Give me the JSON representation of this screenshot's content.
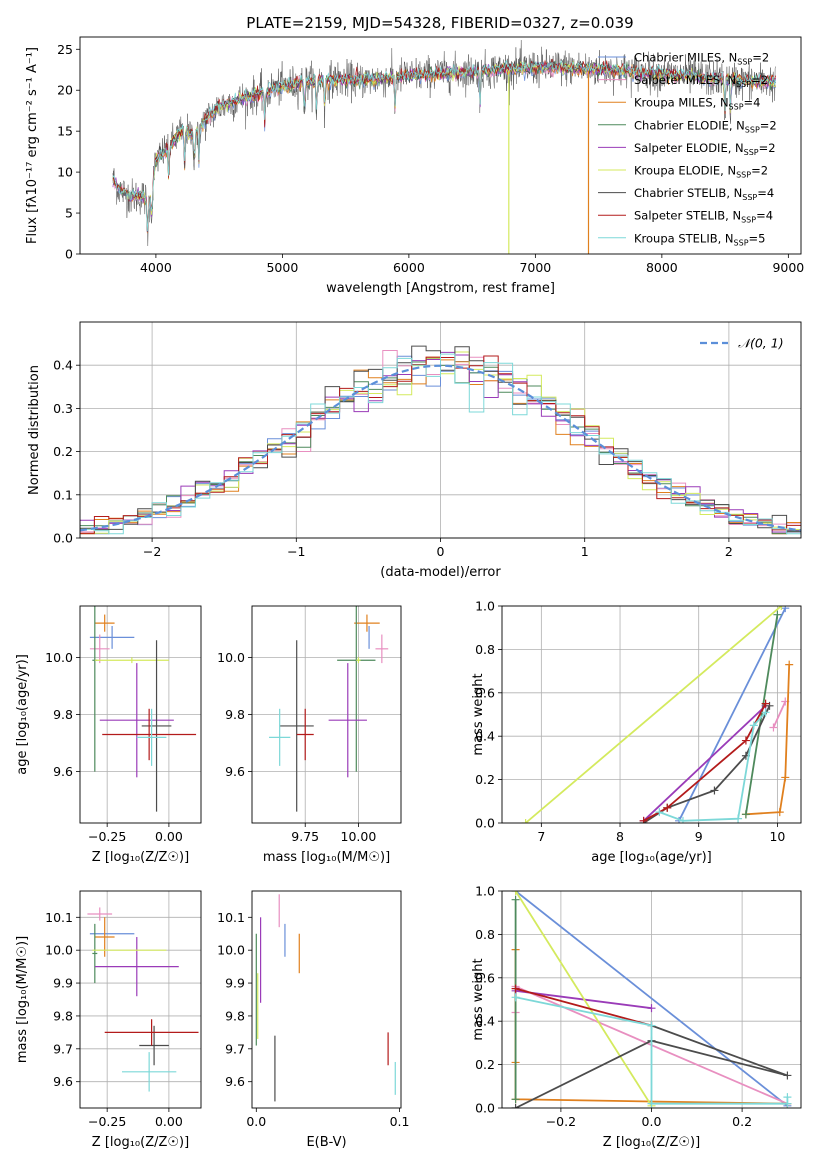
{
  "figure_title": "PLATE=2159, MJD=54328, FIBERID=0327, z=0.039",
  "colors": {
    "Chabrier MILES": "#6a8fd9",
    "Salpeter MILES": "#e88fc0",
    "Kroupa MILES": "#e0801e",
    "Chabrier ELODIE": "#4e8a5c",
    "Salpeter ELODIE": "#9a3bb8",
    "Kroupa ELODIE": "#d4ea5e",
    "Chabrier STELIB": "#4c4c4c",
    "Salpeter STELIB": "#b31b1b",
    "Kroupa STELIB": "#7dd8d8",
    "normal": "#5b8fd9"
  },
  "chart_data": [
    {
      "type": "line",
      "title": "PLATE=2159, MJD=54328, FIBERID=0327, z=0.039",
      "xlabel": "wavelength [Angstrom, rest frame]",
      "ylabel": "Flux [fλ10⁻¹⁷ erg cm⁻² s⁻¹ A⁻¹]",
      "xlim": [
        3400,
        9100
      ],
      "ylim": [
        0,
        26.5
      ],
      "xticks": [
        "4000",
        "5000",
        "6000",
        "7000",
        "8000",
        "9000"
      ],
      "yticks": [
        "0",
        "5",
        "10",
        "15",
        "20",
        "25"
      ],
      "legend_position": "top-right",
      "series": [
        {
          "name": "Chabrier MILES, N_SSP=2",
          "label": "Chabrier MILES, N",
          "sub": "SSP",
          "suffix": "=2"
        },
        {
          "name": "Salpeter MILES, N_SSP=2",
          "label": "Salpeter MILES, N",
          "sub": "SSP",
          "suffix": "=2"
        },
        {
          "name": "Kroupa MILES, N_SSP=4",
          "label": "Kroupa MILES, N",
          "sub": "SSP",
          "suffix": "=4"
        },
        {
          "name": "Chabrier ELODIE, N_SSP=2",
          "label": "Chabrier ELODIE, N",
          "sub": "SSP",
          "suffix": "=2"
        },
        {
          "name": "Salpeter ELODIE, N_SSP=2",
          "label": "Salpeter ELODIE, N",
          "sub": "SSP",
          "suffix": "=2"
        },
        {
          "name": "Kroupa ELODIE, N_SSP=2",
          "label": "Kroupa ELODIE, N",
          "sub": "SSP",
          "suffix": "=2"
        },
        {
          "name": "Chabrier STELIB, N_SSP=4",
          "label": "Chabrier STELIB, N",
          "sub": "SSP",
          "suffix": "=4"
        },
        {
          "name": "Salpeter STELIB, N_SSP=4",
          "label": "Salpeter STELIB, N",
          "sub": "SSP",
          "suffix": "=4"
        },
        {
          "name": "Kroupa STELIB, N_SSP=5",
          "label": "Kroupa STELIB, N",
          "sub": "SSP",
          "suffix": "=5"
        }
      ],
      "continuum": {
        "wavelength": [
          3650,
          3700,
          3800,
          3900,
          3950,
          4000,
          4100,
          4200,
          4300,
          4400,
          4500,
          4600,
          4700,
          4800,
          4900,
          5000,
          5200,
          5400,
          5600,
          5800,
          6000,
          6200,
          6400,
          6600,
          6800,
          7000,
          7200,
          7400,
          7600,
          7800,
          8000,
          8200,
          8400,
          8600,
          8800,
          8900
        ],
        "flux": [
          9.5,
          8.0,
          7.0,
          7.0,
          6.0,
          11.5,
          13.0,
          15.0,
          14.5,
          16.5,
          18.0,
          18.5,
          19.0,
          19.5,
          20.0,
          20.5,
          21.0,
          21.3,
          21.2,
          21.4,
          21.8,
          22.0,
          22.2,
          22.4,
          22.6,
          22.7,
          22.8,
          22.6,
          22.5,
          22.2,
          22.0,
          21.8,
          21.4,
          21.2,
          21.0,
          21.0
        ]
      },
      "drop_lines": [
        {
          "series": "Kroupa ELODIE, N_SSP=2",
          "wavelength": 6790
        },
        {
          "series": "Kroupa MILES, N_SSP=4",
          "wavelength": 7420
        }
      ]
    },
    {
      "type": "histogram",
      "xlabel": "(data-model)/error",
      "ylabel": "Normed distribution",
      "xlim": [
        -2.5,
        2.5
      ],
      "ylim": [
        0,
        0.5
      ],
      "xticks": [
        "−2",
        "−1",
        "0",
        "1",
        "2"
      ],
      "yticks": [
        "0.0",
        "0.1",
        "0.2",
        "0.3",
        "0.4"
      ],
      "bin_width": 0.1,
      "legend_label": "𝒩(0, 1)",
      "legend_position": "top-right",
      "grid": true
    },
    {
      "type": "scatter",
      "xlabel": "Z [log₁₀(Z/Z☉)]",
      "ylabel": "age  [log₁₀(age/yr)]",
      "xlim": [
        -0.36,
        0.13
      ],
      "ylim": [
        9.42,
        10.18
      ],
      "xticks": [
        "−0.25",
        "0.00"
      ],
      "yticks": [
        "9.6",
        "9.8",
        "10.0"
      ],
      "grid": true,
      "points": [
        {
          "series": "Chabrier MILES, N_SSP=2",
          "x": -0.23,
          "y": 10.07,
          "xerr": 0.09,
          "yerr": 0.04
        },
        {
          "series": "Salpeter MILES, N_SSP=2",
          "x": -0.28,
          "y": 10.03,
          "xerr": 0.04,
          "yerr": 0.05
        },
        {
          "series": "Kroupa MILES, N_SSP=4",
          "x": -0.26,
          "y": 10.12,
          "xerr": 0.04,
          "yerr": 0.03
        },
        {
          "series": "Chabrier ELODIE, N_SSP=2",
          "x": -0.3,
          "y": 9.99,
          "xerr": 0.01,
          "yerr": 0.39
        },
        {
          "series": "Salpeter ELODIE, N_SSP=2",
          "x": -0.13,
          "y": 9.78,
          "xerr": 0.15,
          "yerr": 0.2
        },
        {
          "series": "Kroupa ELODIE, N_SSP=2",
          "x": -0.15,
          "y": 9.99,
          "xerr": 0.15,
          "yerr": 0.01
        },
        {
          "series": "Chabrier STELIB, N_SSP=4",
          "x": -0.05,
          "y": 9.76,
          "xerr": 0.06,
          "yerr": 0.3
        },
        {
          "series": "Salpeter STELIB, N_SSP=4",
          "x": -0.08,
          "y": 9.73,
          "xerr": 0.19,
          "yerr": 0.09
        },
        {
          "series": "Kroupa STELIB, N_SSP=5",
          "x": -0.07,
          "y": 9.72,
          "xerr": 0.06,
          "yerr": 0.1
        }
      ]
    },
    {
      "type": "scatter",
      "xlabel": "mass [log₁₀(M/M☉)]",
      "ylabel": "",
      "xlim": [
        9.5,
        10.2
      ],
      "ylim": [
        9.42,
        10.18
      ],
      "xticks": [
        "9.75",
        "10.00"
      ],
      "yticks": [
        "9.6",
        "9.8",
        "10.0"
      ],
      "grid": true,
      "points": [
        {
          "series": "Chabrier MILES, N_SSP=2",
          "x": 10.05,
          "y": 10.07,
          "xerr": 0.0,
          "yerr": 0.04
        },
        {
          "series": "Salpeter MILES, N_SSP=2",
          "x": 10.11,
          "y": 10.03,
          "xerr": 0.03,
          "yerr": 0.05
        },
        {
          "series": "Kroupa MILES, N_SSP=4",
          "x": 10.04,
          "y": 10.12,
          "xerr": 0.06,
          "yerr": 0.03
        },
        {
          "series": "Chabrier ELODIE, N_SSP=2",
          "x": 9.99,
          "y": 9.99,
          "xerr": 0.09,
          "yerr": 0.39
        },
        {
          "series": "Salpeter ELODIE, N_SSP=2",
          "x": 9.95,
          "y": 9.78,
          "xerr": 0.09,
          "yerr": 0.2
        },
        {
          "series": "Kroupa ELODIE, N_SSP=2",
          "x": 10.0,
          "y": 9.99,
          "xerr": 0.01,
          "yerr": 0.01
        },
        {
          "series": "Chabrier STELIB, N_SSP=4",
          "x": 9.71,
          "y": 9.76,
          "xerr": 0.08,
          "yerr": 0.3
        },
        {
          "series": "Salpeter STELIB, N_SSP=4",
          "x": 9.75,
          "y": 9.73,
          "xerr": 0.04,
          "yerr": 0.09
        },
        {
          "series": "Kroupa STELIB, N_SSP=5",
          "x": 9.63,
          "y": 9.72,
          "xerr": 0.05,
          "yerr": 0.1
        }
      ]
    },
    {
      "type": "line",
      "xlabel": "age  [log₁₀(age/yr)]",
      "ylabel": "mass weight",
      "xlim": [
        6.5,
        10.3
      ],
      "ylim": [
        0,
        1.0
      ],
      "xticks": [
        "7",
        "8",
        "9",
        "10"
      ],
      "yticks": [
        "0.0",
        "0.2",
        "0.4",
        "0.6",
        "0.8",
        "1.0"
      ],
      "grid": true,
      "series": [
        {
          "name": "Chabrier MILES, N_SSP=2",
          "x": [
            8.75,
            10.1
          ],
          "y": [
            0.01,
            0.99
          ]
        },
        {
          "name": "Salpeter MILES, N_SSP=2",
          "x": [
            9.95,
            10.1
          ],
          "y": [
            0.44,
            0.56
          ]
        },
        {
          "name": "Kroupa MILES, N_SSP=4",
          "x": [
            9.6,
            10.03,
            10.1,
            10.15
          ],
          "y": [
            0.04,
            0.05,
            0.21,
            0.73
          ]
        },
        {
          "name": "Chabrier ELODIE, N_SSP=2",
          "x": [
            9.6,
            10.0
          ],
          "y": [
            0.04,
            0.96
          ]
        },
        {
          "name": "Salpeter ELODIE, N_SSP=2",
          "x": [
            8.3,
            9.85
          ],
          "y": [
            0.01,
            0.54
          ]
        },
        {
          "name": "Kroupa ELODIE, N_SSP=2",
          "x": [
            6.8,
            10.05
          ],
          "y": [
            0.0,
            1.0
          ]
        },
        {
          "name": "Chabrier STELIB, N_SSP=4",
          "x": [
            8.3,
            8.6,
            9.2,
            9.6,
            9.9
          ],
          "y": [
            0.0,
            0.07,
            0.15,
            0.31,
            0.54
          ]
        },
        {
          "name": "Salpeter STELIB, N_SSP=4",
          "x": [
            8.3,
            8.6,
            9.6,
            9.85
          ],
          "y": [
            0.01,
            0.07,
            0.38,
            0.55
          ]
        },
        {
          "name": "Kroupa STELIB, N_SSP=5",
          "x": [
            8.5,
            8.8,
            9.5,
            9.7,
            9.85
          ],
          "y": [
            0.05,
            0.01,
            0.02,
            0.45,
            0.51
          ]
        }
      ]
    },
    {
      "type": "scatter",
      "xlabel": "Z [log₁₀(Z/Z☉)]",
      "ylabel": "mass [log₁₀(M/M☉)]",
      "xlim": [
        -0.36,
        0.13
      ],
      "ylim": [
        9.52,
        10.18
      ],
      "xticks": [
        "−0.25",
        "0.00"
      ],
      "yticks": [
        "9.6",
        "9.7",
        "9.8",
        "9.9",
        "10.0",
        "10.1"
      ],
      "grid": true,
      "points": [
        {
          "series": "Chabrier MILES, N_SSP=2",
          "x": -0.23,
          "y": 10.05,
          "xerr": 0.09,
          "yerr": 0.0
        },
        {
          "series": "Salpeter MILES, N_SSP=2",
          "x": -0.28,
          "y": 10.11,
          "xerr": 0.05,
          "yerr": 0.02
        },
        {
          "series": "Kroupa MILES, N_SSP=4",
          "x": -0.26,
          "y": 10.04,
          "xerr": 0.04,
          "yerr": 0.06
        },
        {
          "series": "Chabrier ELODIE, N_SSP=2",
          "x": -0.3,
          "y": 9.99,
          "xerr": 0.01,
          "yerr": 0.09
        },
        {
          "series": "Salpeter ELODIE, N_SSP=2",
          "x": -0.13,
          "y": 9.95,
          "xerr": 0.17,
          "yerr": 0.09
        },
        {
          "series": "Kroupa ELODIE, N_SSP=2",
          "x": -0.16,
          "y": 10.0,
          "xerr": 0.15,
          "yerr": 0.0
        },
        {
          "series": "Chabrier STELIB, N_SSP=4",
          "x": -0.06,
          "y": 9.71,
          "xerr": 0.06,
          "yerr": 0.06
        },
        {
          "series": "Salpeter STELIB, N_SSP=4",
          "x": -0.07,
          "y": 9.75,
          "xerr": 0.19,
          "yerr": 0.04
        },
        {
          "series": "Kroupa STELIB, N_SSP=5",
          "x": -0.08,
          "y": 9.63,
          "xerr": 0.11,
          "yerr": 0.06
        }
      ]
    },
    {
      "type": "scatter",
      "xlabel": "E(B-V)",
      "ylabel": "",
      "xlim": [
        -0.003,
        0.101
      ],
      "ylim": [
        9.52,
        10.18
      ],
      "xticks": [
        "0.0",
        "0.1"
      ],
      "yticks": [
        "9.6",
        "9.7",
        "9.8",
        "9.9",
        "10.0",
        "10.1"
      ],
      "grid": false,
      "points": [
        {
          "series": "Chabrier MILES, N_SSP=2",
          "x": 0.02,
          "y": 10.03,
          "xerr": 0.0,
          "yerr": 0.05
        },
        {
          "series": "Salpeter MILES, N_SSP=2",
          "x": 0.016,
          "y": 10.12,
          "xerr": 0.0,
          "yerr": 0.05
        },
        {
          "series": "Kroupa MILES, N_SSP=4",
          "x": 0.03,
          "y": 9.99,
          "xerr": 0.0,
          "yerr": 0.06
        },
        {
          "series": "Chabrier ELODIE, N_SSP=2",
          "x": 0.0,
          "y": 9.88,
          "xerr": 0.0,
          "yerr": 0.17
        },
        {
          "series": "Salpeter ELODIE, N_SSP=2",
          "x": 0.003,
          "y": 9.97,
          "xerr": 0.0,
          "yerr": 0.13
        },
        {
          "series": "Kroupa ELODIE, N_SSP=2",
          "x": 0.001,
          "y": 9.83,
          "xerr": 0.0,
          "yerr": 0.1
        },
        {
          "series": "Chabrier STELIB, N_SSP=4",
          "x": 0.013,
          "y": 9.64,
          "xerr": 0.0,
          "yerr": 0.1
        },
        {
          "series": "Salpeter STELIB, N_SSP=4",
          "x": 0.092,
          "y": 9.7,
          "xerr": 0.0,
          "yerr": 0.05
        },
        {
          "series": "Kroupa STELIB, N_SSP=5",
          "x": 0.097,
          "y": 9.61,
          "xerr": 0.0,
          "yerr": 0.05
        }
      ]
    },
    {
      "type": "line",
      "xlabel": "Z [log₁₀(Z/Z☉)]",
      "ylabel": "mass weight",
      "xlim": [
        -0.33,
        0.33
      ],
      "ylim": [
        0,
        1.0
      ],
      "xticks": [
        "−0.2",
        "0.0",
        "0.2"
      ],
      "yticks": [
        "0.0",
        "0.2",
        "0.4",
        "0.6",
        "0.8",
        "1.0"
      ],
      "grid": true,
      "series": [
        {
          "name": "Chabrier MILES, N_SSP=2",
          "x": [
            -0.3,
            0.3
          ],
          "y": [
            1.0,
            0.01
          ]
        },
        {
          "name": "Salpeter MILES, N_SSP=2",
          "x": [
            -0.3,
            -0.3,
            0.3
          ],
          "y": [
            0.44,
            0.56,
            0.02
          ]
        },
        {
          "name": "Kroupa MILES, N_SSP=4",
          "x": [
            -0.3,
            -0.3,
            -0.3,
            0.3
          ],
          "y": [
            0.73,
            0.21,
            0.04,
            0.02
          ]
        },
        {
          "name": "Chabrier ELODIE, N_SSP=2",
          "x": [
            -0.3,
            -0.3
          ],
          "y": [
            0.96,
            0.04
          ]
        },
        {
          "name": "Salpeter ELODIE, N_SSP=2",
          "x": [
            -0.3,
            0.0
          ],
          "y": [
            0.54,
            0.46
          ]
        },
        {
          "name": "Kroupa ELODIE, N_SSP=2",
          "x": [
            -0.3,
            0.0
          ],
          "y": [
            1.0,
            0.01
          ]
        },
        {
          "name": "Chabrier STELIB, N_SSP=4",
          "x": [
            -0.3,
            0.0,
            0.3,
            0.0
          ],
          "y": [
            0.0,
            0.31,
            0.15,
            0.38
          ]
        },
        {
          "name": "Salpeter STELIB, N_SSP=4",
          "x": [
            -0.3,
            0.0
          ],
          "y": [
            0.55,
            0.38
          ]
        },
        {
          "name": "Kroupa STELIB, N_SSP=5",
          "x": [
            -0.3,
            0.0,
            0.0,
            0.3,
            0.3
          ],
          "y": [
            0.51,
            0.38,
            0.02,
            0.02,
            0.05
          ]
        }
      ]
    }
  ]
}
